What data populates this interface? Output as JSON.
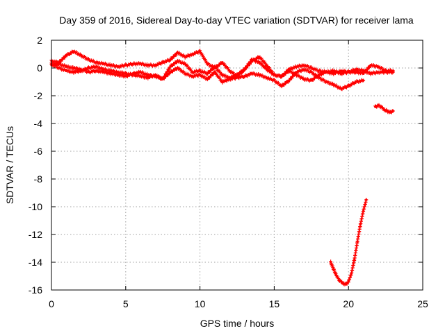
{
  "chart_data": {
    "type": "scatter",
    "title": "Day 359 of 2016, Sidereal Day-to-day VTEC variation (SDTVAR) for receiver lama",
    "xlabel": "GPS time / hours",
    "ylabel": "SDTVAR / TECUs",
    "xlim": [
      0,
      25
    ],
    "ylim": [
      -16,
      2
    ],
    "xticks": [
      0,
      5,
      10,
      15,
      20,
      25
    ],
    "yticks": [
      2,
      0,
      -2,
      -4,
      -6,
      -8,
      -10,
      -12,
      -14,
      -16
    ],
    "grid": true,
    "marker_color": "#ff0000",
    "series": [
      {
        "x": [
          0,
          0.5,
          1,
          1.5,
          2,
          2.5,
          3,
          3.5,
          4,
          4.5,
          5,
          5.5,
          6,
          6.5,
          7,
          7.5,
          8,
          8.5,
          9,
          9.5,
          10,
          10.5,
          11,
          11.5,
          12,
          12.5,
          13,
          13.5,
          14,
          14.5,
          15,
          15.5,
          16,
          16.5,
          17,
          17.5,
          18,
          18.5,
          19,
          19.5,
          20,
          20.5,
          21,
          21.5,
          22,
          22.5,
          23
        ],
        "y": [
          0.5,
          0.4,
          0.9,
          1.2,
          0.9,
          0.6,
          0.4,
          0.3,
          0.2,
          0.1,
          0.2,
          0.3,
          0.3,
          0.2,
          0.2,
          0.4,
          0.6,
          1.1,
          0.8,
          1.0,
          1.2,
          0.3,
          0.0,
          0.4,
          -0.2,
          -0.6,
          -0.1,
          0.5,
          0.8,
          0.2,
          -0.5,
          -0.6,
          -0.1,
          0.1,
          0.2,
          0.0,
          -0.2,
          -0.3,
          -0.2,
          -0.4,
          -0.3,
          -0.3,
          -0.4,
          0.2,
          0.1,
          -0.2,
          -0.2
        ]
      },
      {
        "x": [
          0,
          0.5,
          1,
          1.5,
          2,
          2.5,
          3,
          3.5,
          4,
          4.5,
          5,
          5.5,
          6,
          6.5,
          7,
          7.5,
          8,
          8.5,
          9,
          9.5,
          10,
          10.5,
          11,
          11.5,
          12,
          12.5,
          13,
          13.5,
          14,
          14.5,
          15,
          15.5,
          16,
          16.5,
          17,
          17.5,
          18,
          18.5,
          19,
          19.5,
          20,
          20.5,
          21
        ],
        "y": [
          0.3,
          0.0,
          -0.2,
          -0.3,
          -0.2,
          0.0,
          0.1,
          -0.1,
          -0.2,
          -0.3,
          -0.4,
          -0.5,
          -0.6,
          -0.7,
          -0.5,
          -0.8,
          -0.3,
          0.0,
          -0.4,
          -0.6,
          -0.5,
          -0.8,
          -0.3,
          -1.0,
          -0.8,
          -0.7,
          -0.6,
          -0.4,
          -0.5,
          -0.7,
          -0.9,
          -1.3,
          -0.9,
          -0.3,
          -0.1,
          -0.3,
          -0.7,
          -1.0,
          -1.2,
          -1.5,
          -1.3,
          -1.0,
          -0.9
        ]
      },
      {
        "x": [
          0,
          0.5,
          1,
          1.5,
          2,
          2.5,
          3,
          3.5,
          4,
          4.5,
          5,
          5.5,
          6,
          6.5,
          7,
          7.5,
          8,
          8.5,
          9,
          9.5,
          10,
          10.5,
          11,
          11.5,
          12,
          12.5,
          13,
          13.5,
          14,
          14.5,
          15,
          15.5,
          16,
          16.5,
          17,
          17.5,
          18,
          18.5,
          19,
          19.5,
          20,
          20.5,
          21,
          21.5,
          22,
          22.5,
          23
        ],
        "y": [
          0.2,
          0.3,
          0.1,
          0.0,
          -0.1,
          -0.3,
          -0.2,
          -0.3,
          -0.4,
          -0.5,
          -0.6,
          -0.4,
          -0.3,
          -0.5,
          -0.6,
          -0.8,
          0.1,
          0.5,
          0.3,
          -0.3,
          -0.2,
          -0.4,
          0.1,
          -0.5,
          -0.7,
          -0.5,
          -0.1,
          0.6,
          0.4,
          -0.1,
          -0.5,
          -0.6,
          -0.2,
          -0.5,
          -0.8,
          -0.9,
          -0.5,
          -0.3,
          -0.4,
          -0.2,
          -0.3,
          -0.1,
          -0.2,
          -0.4,
          -0.3,
          -0.3,
          -0.3
        ]
      },
      {
        "x": [
          21.8,
          22.0,
          22.2,
          22.4,
          22.6,
          22.8,
          23.0
        ],
        "y": [
          -2.8,
          -2.7,
          -2.8,
          -3.0,
          -3.1,
          -3.2,
          -3.1
        ]
      },
      {
        "x": [
          18.8,
          19.0,
          19.2,
          19.4,
          19.6,
          19.8,
          20.0,
          20.2,
          20.4,
          20.6,
          20.8,
          21.0,
          21.2
        ],
        "y": [
          -14.0,
          -14.5,
          -15.0,
          -15.3,
          -15.5,
          -15.6,
          -15.4,
          -14.8,
          -13.8,
          -12.5,
          -11.3,
          -10.3,
          -9.5
        ]
      }
    ]
  }
}
